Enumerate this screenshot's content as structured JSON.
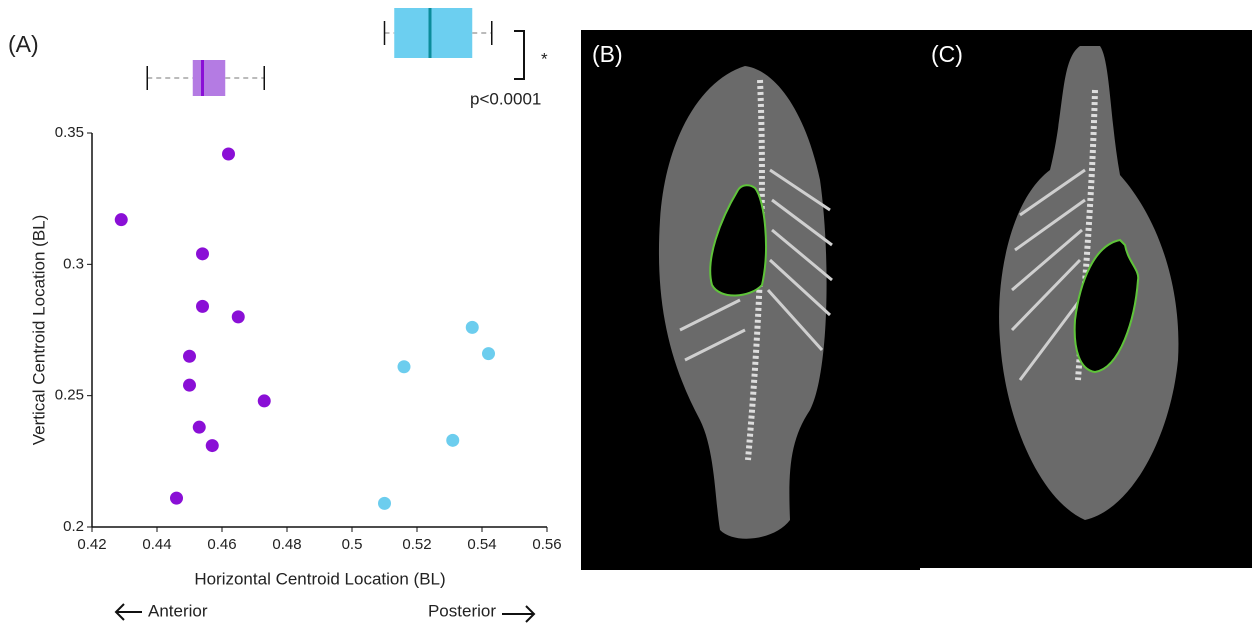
{
  "chart_data": {
    "type": "scatter",
    "panel_label": "(A)",
    "xlabel": "Horizontal Centroid Location (BL)",
    "ylabel": "Vertical Centroid Location (BL)",
    "xlim": [
      0.42,
      0.56
    ],
    "xticks": [
      0.42,
      0.44,
      0.46,
      0.48,
      0.5,
      0.52,
      0.54,
      0.56
    ],
    "ylim": [
      0.2,
      0.35
    ],
    "yticks": [
      0.2,
      0.25,
      0.3,
      0.35
    ],
    "grid": false,
    "series": [
      {
        "color": "#8a0fd6",
        "box_color": "#b47be3",
        "x": [
          0.462,
          0.429,
          0.454,
          0.454,
          0.465,
          0.45,
          0.45,
          0.473,
          0.453,
          0.457,
          0.446
        ],
        "values": [
          0.342,
          0.317,
          0.304,
          0.284,
          0.28,
          0.265,
          0.254,
          0.248,
          0.238,
          0.231,
          0.211
        ],
        "box": [
          0.437,
          0.451,
          0.454,
          0.461,
          0.473
        ]
      },
      {
        "color": "#6ccdee",
        "box_color": "#6ccff0",
        "median_color": "#0b8c9a",
        "x": [
          0.537,
          0.542,
          0.516,
          0.531,
          0.51
        ],
        "values": [
          0.276,
          0.266,
          0.261,
          0.233,
          0.209
        ],
        "box": [
          0.51,
          0.513,
          0.524,
          0.537,
          0.543
        ]
      }
    ],
    "annotations": [
      "*",
      "p<0.0001"
    ],
    "direction_labels": [
      "Anterior",
      "Posterior"
    ]
  },
  "images": [
    {
      "label": "(B)"
    },
    {
      "label": "(C)"
    }
  ]
}
